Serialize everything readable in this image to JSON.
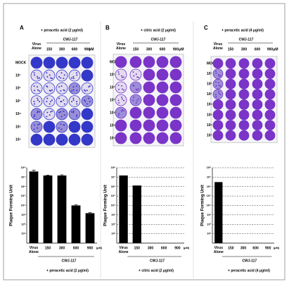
{
  "panels": [
    {
      "letter": "A",
      "treatment": "+ peracetic acid (2 μg/ml)",
      "treatment_color": "#000000",
      "group": "CWJ-117",
      "columns": [
        "Virus Alone",
        "150",
        "300",
        "600",
        "900"
      ],
      "unit": "μM",
      "rows": [
        "MOCK",
        "10¹",
        "10²",
        "10³",
        "10⁴",
        "10⁵",
        "10⁶"
      ]
    },
    {
      "letter": "B",
      "treatment": "+ citric acid (2 μg/ml)",
      "treatment_color": "#e00000",
      "group": "CWJ-117",
      "columns": [
        "Virus Alone",
        "150",
        "300",
        "600",
        "900"
      ],
      "unit": "μM",
      "rows": [
        "MOCK",
        "10¹",
        "10²",
        "10³",
        "10⁴",
        "10⁵",
        "10⁶"
      ]
    },
    {
      "letter": "C",
      "treatment": "+ peracetic acid (4 μg/ml)",
      "treatment_color": "#e00000",
      "group": "CWJ-117",
      "columns": [
        "Virus Alone",
        "150",
        "300",
        "600",
        "900"
      ],
      "unit": "μM",
      "rows": [
        "MOCK",
        "10¹",
        "10²",
        "10³",
        "10⁴",
        "10⁵",
        "10⁶",
        "10⁷"
      ]
    }
  ],
  "chart_data": [
    {
      "type": "bar",
      "y_label": "Plaque Forming Unit",
      "categories": [
        "Virus Alone",
        "150",
        "300",
        "600",
        "900"
      ],
      "unit": "(μM)",
      "group": "CWJ-117",
      "treatment": "+ peracetic acid (2 μg/ml)",
      "treatment_color": "#000000",
      "values": [
        40000000,
        15000000,
        15000000,
        10000,
        1500
      ],
      "errors": [
        15000000,
        2000000,
        3000000,
        1500,
        300
      ],
      "color": "#000000",
      "log_scale": true,
      "grid": false,
      "ylim": [
        1,
        100000000
      ],
      "yticks": [
        {
          "value": 10,
          "label": "10¹"
        },
        {
          "value": 100,
          "label": "10²"
        },
        {
          "value": 1000,
          "label": "10³"
        },
        {
          "value": 10000,
          "label": "10⁴"
        },
        {
          "value": 100000,
          "label": "10⁵"
        },
        {
          "value": 1000000,
          "label": "10⁶"
        },
        {
          "value": 10000000,
          "label": "10⁷"
        },
        {
          "value": 100000000,
          "label": "10⁸"
        }
      ]
    },
    {
      "type": "bar",
      "y_label": "Plaque Forming Unit",
      "categories": [
        "Virus Alone",
        "150",
        "300",
        "600",
        "900"
      ],
      "unit": "(μM)",
      "group": "CWJ-117",
      "treatment": "+ citric acid (2 μg/ml)",
      "treatment_color": "#e00000",
      "values": [
        15000000,
        1300000,
        null,
        null,
        null
      ],
      "color": "#000000",
      "log_scale": true,
      "grid": true,
      "ylim": [
        1,
        100000000
      ],
      "yticks": [
        {
          "value": 10,
          "label": "10¹"
        },
        {
          "value": 100,
          "label": "10²"
        },
        {
          "value": 1000,
          "label": "10³"
        },
        {
          "value": 10000,
          "label": "10⁴"
        },
        {
          "value": 100000,
          "label": "10⁵"
        },
        {
          "value": 1000000,
          "label": "10⁶"
        },
        {
          "value": 10000000,
          "label": "10⁷"
        },
        {
          "value": 100000000,
          "label": "10⁸"
        }
      ]
    },
    {
      "type": "bar",
      "y_label": "Plaque Forming Unit",
      "categories": [
        "Virus Alone",
        "150",
        "300",
        "600",
        "900"
      ],
      "unit": "(μM)",
      "group": "CWJ-117",
      "treatment": "+ peracetic acid (4 μg/ml)",
      "treatment_color": "#e00000",
      "values": [
        3000000,
        null,
        null,
        null,
        null
      ],
      "color": "#000000",
      "log_scale": true,
      "grid": true,
      "ylim": [
        1,
        100000000
      ],
      "yticks": [
        {
          "value": 10,
          "label": "10¹"
        },
        {
          "value": 100,
          "label": "10²"
        },
        {
          "value": 1000,
          "label": "10³"
        },
        {
          "value": 10000,
          "label": "10⁴"
        },
        {
          "value": 100000,
          "label": "10⁵"
        },
        {
          "value": 1000000,
          "label": "10⁶"
        },
        {
          "value": 10000000,
          "label": "10⁷"
        },
        {
          "value": 100000000,
          "label": "10⁸"
        }
      ]
    }
  ]
}
